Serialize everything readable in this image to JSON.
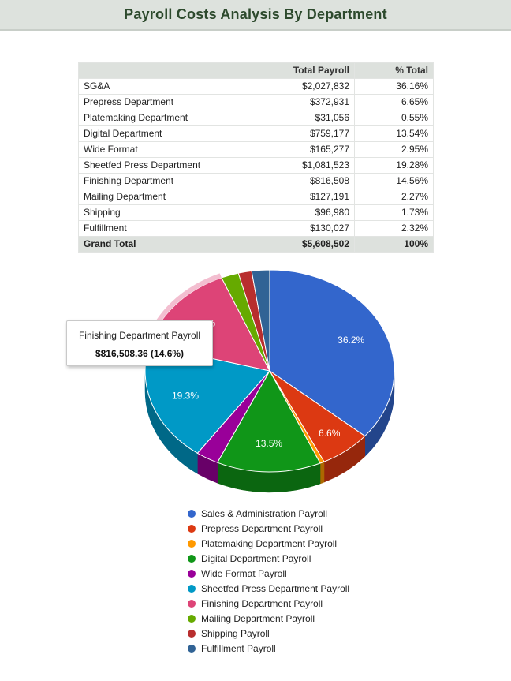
{
  "page": {
    "title": "Payroll Costs Analysis By Department"
  },
  "table": {
    "headers": [
      "",
      "Total Payroll",
      "% Total"
    ],
    "rows": [
      {
        "name": "SG&A",
        "total": "$2,027,832",
        "pct": "36.16%"
      },
      {
        "name": "Prepress Department",
        "total": "$372,931",
        "pct": "6.65%"
      },
      {
        "name": "Platemaking Department",
        "total": "$31,056",
        "pct": "0.55%"
      },
      {
        "name": "Digital Department",
        "total": "$759,177",
        "pct": "13.54%"
      },
      {
        "name": "Wide Format",
        "total": "$165,277",
        "pct": "2.95%"
      },
      {
        "name": "Sheetfed Press Department",
        "total": "$1,081,523",
        "pct": "19.28%"
      },
      {
        "name": "Finishing Department",
        "total": "$816,508",
        "pct": "14.56%"
      },
      {
        "name": "Mailing Department",
        "total": "$127,191",
        "pct": "2.27%"
      },
      {
        "name": "Shipping",
        "total": "$96,980",
        "pct": "1.73%"
      },
      {
        "name": "Fulfillment",
        "total": "$130,027",
        "pct": "2.32%"
      }
    ],
    "total": {
      "name": "Grand Total",
      "total": "$5,608,502",
      "pct": "100%"
    }
  },
  "chart_data": {
    "type": "pie",
    "title": "",
    "series": [
      {
        "name": "Sales & Administration Payroll",
        "value": 2027832,
        "color": "#3366cc",
        "label": "36.2%"
      },
      {
        "name": "Prepress Department Payroll",
        "value": 372931,
        "color": "#dc3912",
        "label": "6.6%"
      },
      {
        "name": "Platemaking Department Payroll",
        "value": 31056,
        "color": "#ff9900",
        "label": ""
      },
      {
        "name": "Digital Department Payroll",
        "value": 759177,
        "color": "#109618",
        "label": "13.5%"
      },
      {
        "name": "Wide Format Payroll",
        "value": 165277,
        "color": "#990099",
        "label": ""
      },
      {
        "name": "Sheetfed Press Department Payroll",
        "value": 1081523,
        "color": "#0099c6",
        "label": "19.3%"
      },
      {
        "name": "Finishing Department Payroll",
        "value": 816508,
        "color": "#dd4477",
        "label": "14.6%"
      },
      {
        "name": "Mailing Department Payroll",
        "value": 127191,
        "color": "#66aa00",
        "label": ""
      },
      {
        "name": "Shipping Payroll",
        "value": 96980,
        "color": "#b82e2e",
        "label": ""
      },
      {
        "name": "Fulfillment Payroll",
        "value": 130027,
        "color": "#316395",
        "label": ""
      }
    ],
    "highlighted": "Finishing Department Payroll",
    "legend_position": "bottom",
    "tooltip": {
      "title": "Finishing Department Payroll",
      "value": "$816,508.36 (14.6%)"
    }
  }
}
